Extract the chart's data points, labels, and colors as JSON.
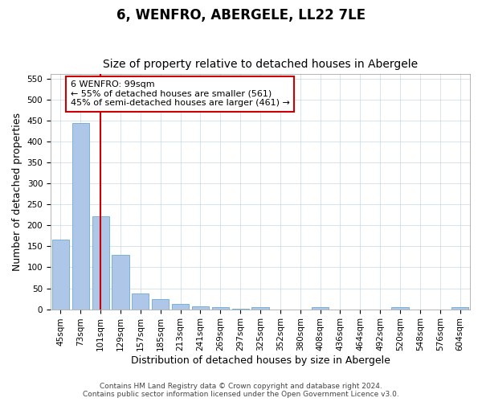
{
  "title": "6, WENFRO, ABERGELE, LL22 7LE",
  "subtitle": "Size of property relative to detached houses in Abergele",
  "xlabel": "Distribution of detached houses by size in Abergele",
  "ylabel": "Number of detached properties",
  "categories": [
    "45sqm",
    "73sqm",
    "101sqm",
    "129sqm",
    "157sqm",
    "185sqm",
    "213sqm",
    "241sqm",
    "269sqm",
    "297sqm",
    "325sqm",
    "352sqm",
    "380sqm",
    "408sqm",
    "436sqm",
    "464sqm",
    "492sqm",
    "520sqm",
    "548sqm",
    "576sqm",
    "604sqm"
  ],
  "values": [
    165,
    443,
    221,
    130,
    37,
    25,
    12,
    6,
    5,
    1,
    5,
    0,
    0,
    5,
    0,
    0,
    0,
    5,
    0,
    0,
    5
  ],
  "bar_color": "#aec6e8",
  "bar_edge_color": "#6aaad4",
  "vline_x": 2,
  "vline_color": "#cc0000",
  "ylim": [
    0,
    560
  ],
  "yticks": [
    0,
    50,
    100,
    150,
    200,
    250,
    300,
    350,
    400,
    450,
    500,
    550
  ],
  "annotation_text": "6 WENFRO: 99sqm\n← 55% of detached houses are smaller (561)\n45% of semi-detached houses are larger (461) →",
  "annotation_box_color": "#ffffff",
  "annotation_border_color": "#cc0000",
  "footer_line1": "Contains HM Land Registry data © Crown copyright and database right 2024.",
  "footer_line2": "Contains public sector information licensed under the Open Government Licence v3.0.",
  "title_fontsize": 12,
  "subtitle_fontsize": 10,
  "tick_fontsize": 7.5,
  "label_fontsize": 9,
  "annotation_fontsize": 8,
  "footer_fontsize": 6.5,
  "background_color": "#ffffff",
  "grid_color": "#c8d8e8"
}
